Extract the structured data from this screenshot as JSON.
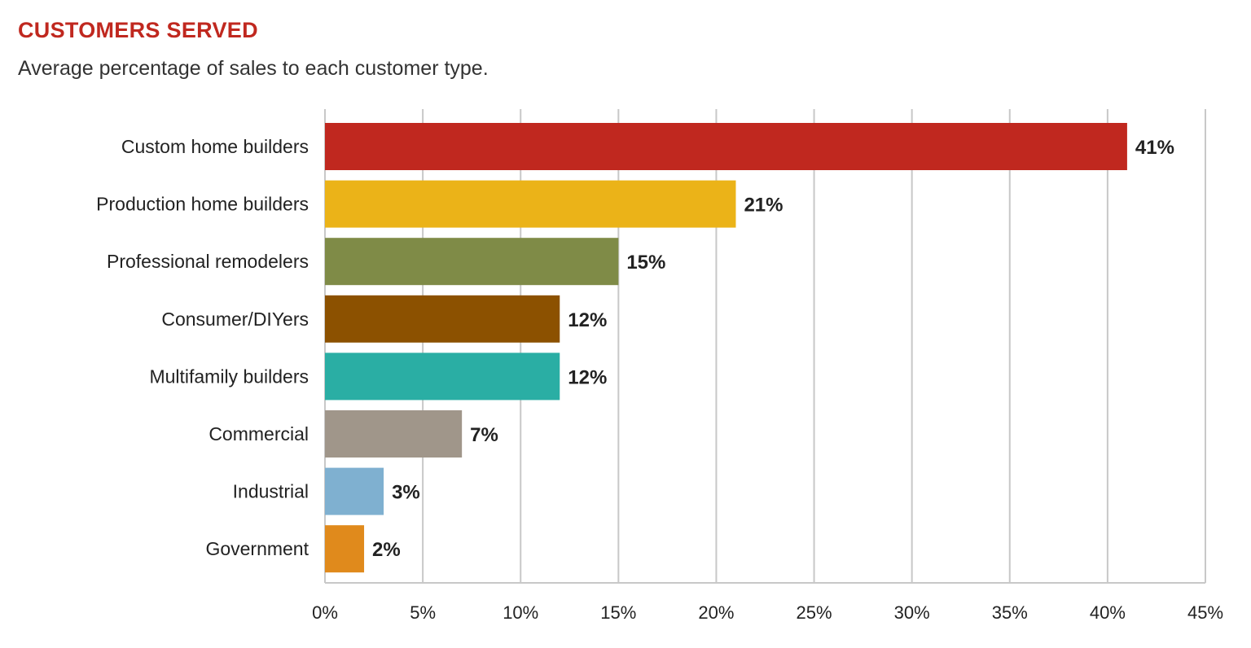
{
  "chart_data": {
    "type": "bar",
    "orientation": "horizontal",
    "title": "CUSTOMERS SERVED",
    "subtitle": "Average percentage of sales to each customer type.",
    "categories": [
      "Custom home builders",
      "Production home builders",
      "Professional remodelers",
      "Consumer/DIYers",
      "Multifamily builders",
      "Commercial",
      "Industrial",
      "Government"
    ],
    "values": [
      41,
      21,
      15,
      12,
      12,
      7,
      3,
      2
    ],
    "value_labels": [
      "41%",
      "21%",
      "15%",
      "12%",
      "12%",
      "7%",
      "3%",
      "2%"
    ],
    "colors": [
      "#c0281f",
      "#ebb318",
      "#7f8b47",
      "#8c5100",
      "#2aaea4",
      "#a0968a",
      "#7fb0d0",
      "#e08a1c"
    ],
    "xlim": [
      0,
      45
    ],
    "xticks": [
      0,
      5,
      10,
      15,
      20,
      25,
      30,
      35,
      40,
      45
    ],
    "xtick_labels": [
      "0%",
      "5%",
      "10%",
      "15%",
      "20%",
      "25%",
      "30%",
      "35%",
      "40%",
      "45%"
    ],
    "grid": true,
    "title_color": "#c0281f"
  }
}
